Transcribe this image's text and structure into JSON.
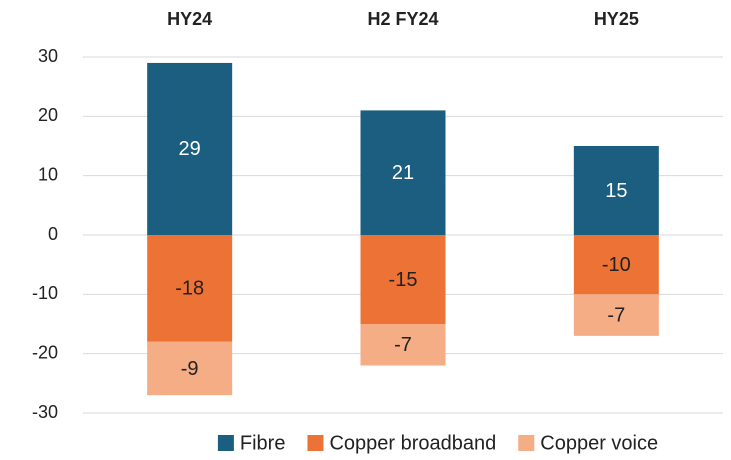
{
  "chart_data": {
    "type": "stacked_bar",
    "categories": [
      "HY24",
      "H2 FY24",
      "HY25"
    ],
    "series": [
      {
        "name": "Fibre",
        "color": "#1b5e80",
        "values": [
          29,
          21,
          15
        ]
      },
      {
        "name": "Copper broadband",
        "color": "#ec7235",
        "values": [
          -18,
          -15,
          -10
        ]
      },
      {
        "name": "Copper voice",
        "color": "#f4ad85",
        "values": [
          -9,
          -7,
          -7
        ]
      }
    ],
    "ylim": [
      -30,
      30
    ],
    "yticks": [
      -30,
      -20,
      -10,
      0,
      10,
      20,
      30
    ],
    "grid": true,
    "legend": "bottom"
  }
}
